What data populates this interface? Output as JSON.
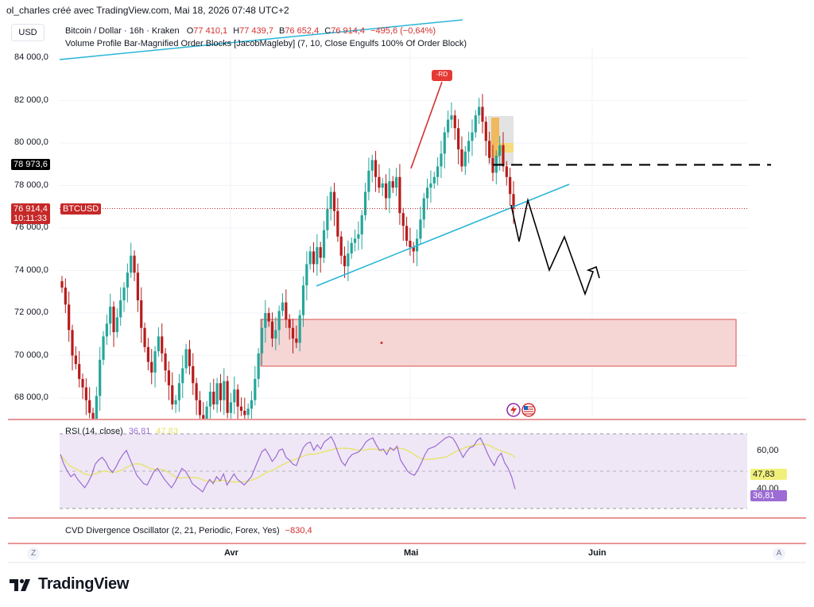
{
  "header": {
    "caption": "ol_charles créé avec TradingView.com, Mai 18, 2026 07:48 UTC+2",
    "currency_button": "USD"
  },
  "legend": {
    "symbol": "Bitcoin / Dollar · 16h · Kraken",
    "o_label": "O",
    "o_value": "77 410,1",
    "h_label": "H",
    "h_value": "77 439,7",
    "b_label": "B",
    "b_value": "76 652,4",
    "c_label": "C",
    "c_value": "76 914,4",
    "change": "−495,6 (−0,64%)",
    "indicator": "Volume Profile Bar-Magnified Order Blocks [JacobMagleby] (7, 10, Close Engulfs 100% Of Order Block)"
  },
  "price_labels": {
    "level_tag": "78 973,6",
    "last_price": "76 914,4",
    "countdown": "10:11:33",
    "ticker": "BTCUSD",
    "peak_tag": "-RD"
  },
  "rsi": {
    "title": "RSI (14, close)",
    "value": "36,81",
    "ma_value": "47,83",
    "axis_labels": [
      "60,00",
      "40,00"
    ],
    "badge_ma": "47,83",
    "badge_value": "36,81"
  },
  "cvd": {
    "title": "CVD Divergence Oscillator (2, 21, Periodic, Forex, Yes)",
    "value": "−830,4"
  },
  "time_axis": {
    "labels": [
      "Avr",
      "Mai",
      "Juin"
    ],
    "left_button": "Z",
    "right_button": "A"
  },
  "brand": {
    "name": "TradingView"
  },
  "colors": {
    "up": "#26a69a",
    "down": "#b71c1c",
    "trendline": "#29b6d8",
    "zone_fill": "#f6d5d5",
    "zone_border": "#d9534f",
    "rsi": "#9c6bd3",
    "rsi_ma": "#e8e36b",
    "rsi_band": "#efe7f6",
    "accent_red": "#d32f2f"
  },
  "chart_data": {
    "type": "candlestick",
    "x_axis_ticks": [
      "Avr",
      "Mai",
      "Juin"
    ],
    "y_axis_ticks": [
      "84 000,0",
      "82 000,0",
      "80 000,0",
      "78 000,0",
      "76 000,0",
      "74 000,0",
      "72 000,0",
      "70 000,0",
      "68 000,0"
    ],
    "ylim": [
      67000,
      84800
    ],
    "closes": [
      73200,
      72400,
      71200,
      70000,
      69600,
      68900,
      68500,
      67900,
      67300,
      66900,
      68100,
      69800,
      70900,
      71500,
      72300,
      71100,
      71800,
      72600,
      73200,
      73900,
      74700,
      73900,
      72600,
      71300,
      70400,
      69700,
      69200,
      70200,
      70900,
      70100,
      69300,
      68600,
      67700,
      67900,
      68700,
      69400,
      70300,
      69500,
      68700,
      67900,
      67200,
      66800,
      67600,
      68300,
      67700,
      68700,
      67900,
      68800,
      67300,
      67800,
      68400,
      67600,
      67400,
      67200,
      67500,
      67900,
      68900,
      70100,
      71300,
      72000,
      71600,
      70800,
      71200,
      72100,
      72500,
      71700,
      71300,
      70800,
      70600,
      71900,
      73300,
      74300,
      74900,
      74300,
      75100,
      74600,
      75900,
      76900,
      77700,
      76800,
      75600,
      74700,
      74200,
      74800,
      75300,
      75500,
      75700,
      76600,
      77700,
      78700,
      79200,
      78400,
      77900,
      78100,
      77400,
      78200,
      77900,
      78400,
      76700,
      76100,
      75400,
      75100,
      74900,
      75500,
      76400,
      77400,
      77900,
      78100,
      78400,
      78900,
      79500,
      80500,
      81100,
      81300,
      80700,
      79700,
      78900,
      79600,
      80100,
      80500,
      81300,
      81700,
      81000,
      80100,
      79300,
      78600,
      79400,
      79900,
      78900,
      78400,
      77600,
      76900
    ],
    "key_level": 78973.6,
    "last_price": 76914.4,
    "demand_zone": {
      "low": 69500,
      "high": 71700
    },
    "rsi_series": [
      62,
      55,
      50,
      46,
      48,
      44,
      41,
      38,
      42,
      47,
      55,
      58,
      60,
      57,
      52,
      49,
      53,
      58,
      62,
      65,
      59,
      53,
      47,
      44,
      41,
      40,
      45,
      50,
      52,
      48,
      44,
      41,
      38,
      42,
      47,
      52,
      50,
      46,
      41,
      39,
      37,
      35,
      40,
      44,
      41,
      46,
      43,
      48,
      40,
      44,
      48,
      44,
      42,
      40,
      43,
      46,
      52,
      58,
      64,
      66,
      62,
      57,
      60,
      65,
      66,
      60,
      58,
      55,
      54,
      61,
      67,
      70,
      71,
      65,
      69,
      66,
      71,
      73,
      75,
      70,
      63,
      57,
      54,
      59,
      62,
      63,
      64,
      67,
      71,
      73,
      74,
      69,
      65,
      66,
      62,
      67,
      65,
      68,
      58,
      54,
      50,
      48,
      47,
      51,
      56,
      62,
      66,
      67,
      68,
      70,
      72,
      74,
      75,
      74,
      70,
      65,
      60,
      64,
      67,
      68,
      72,
      74,
      69,
      63,
      58,
      54,
      60,
      63,
      56,
      52,
      46,
      37
    ]
  }
}
